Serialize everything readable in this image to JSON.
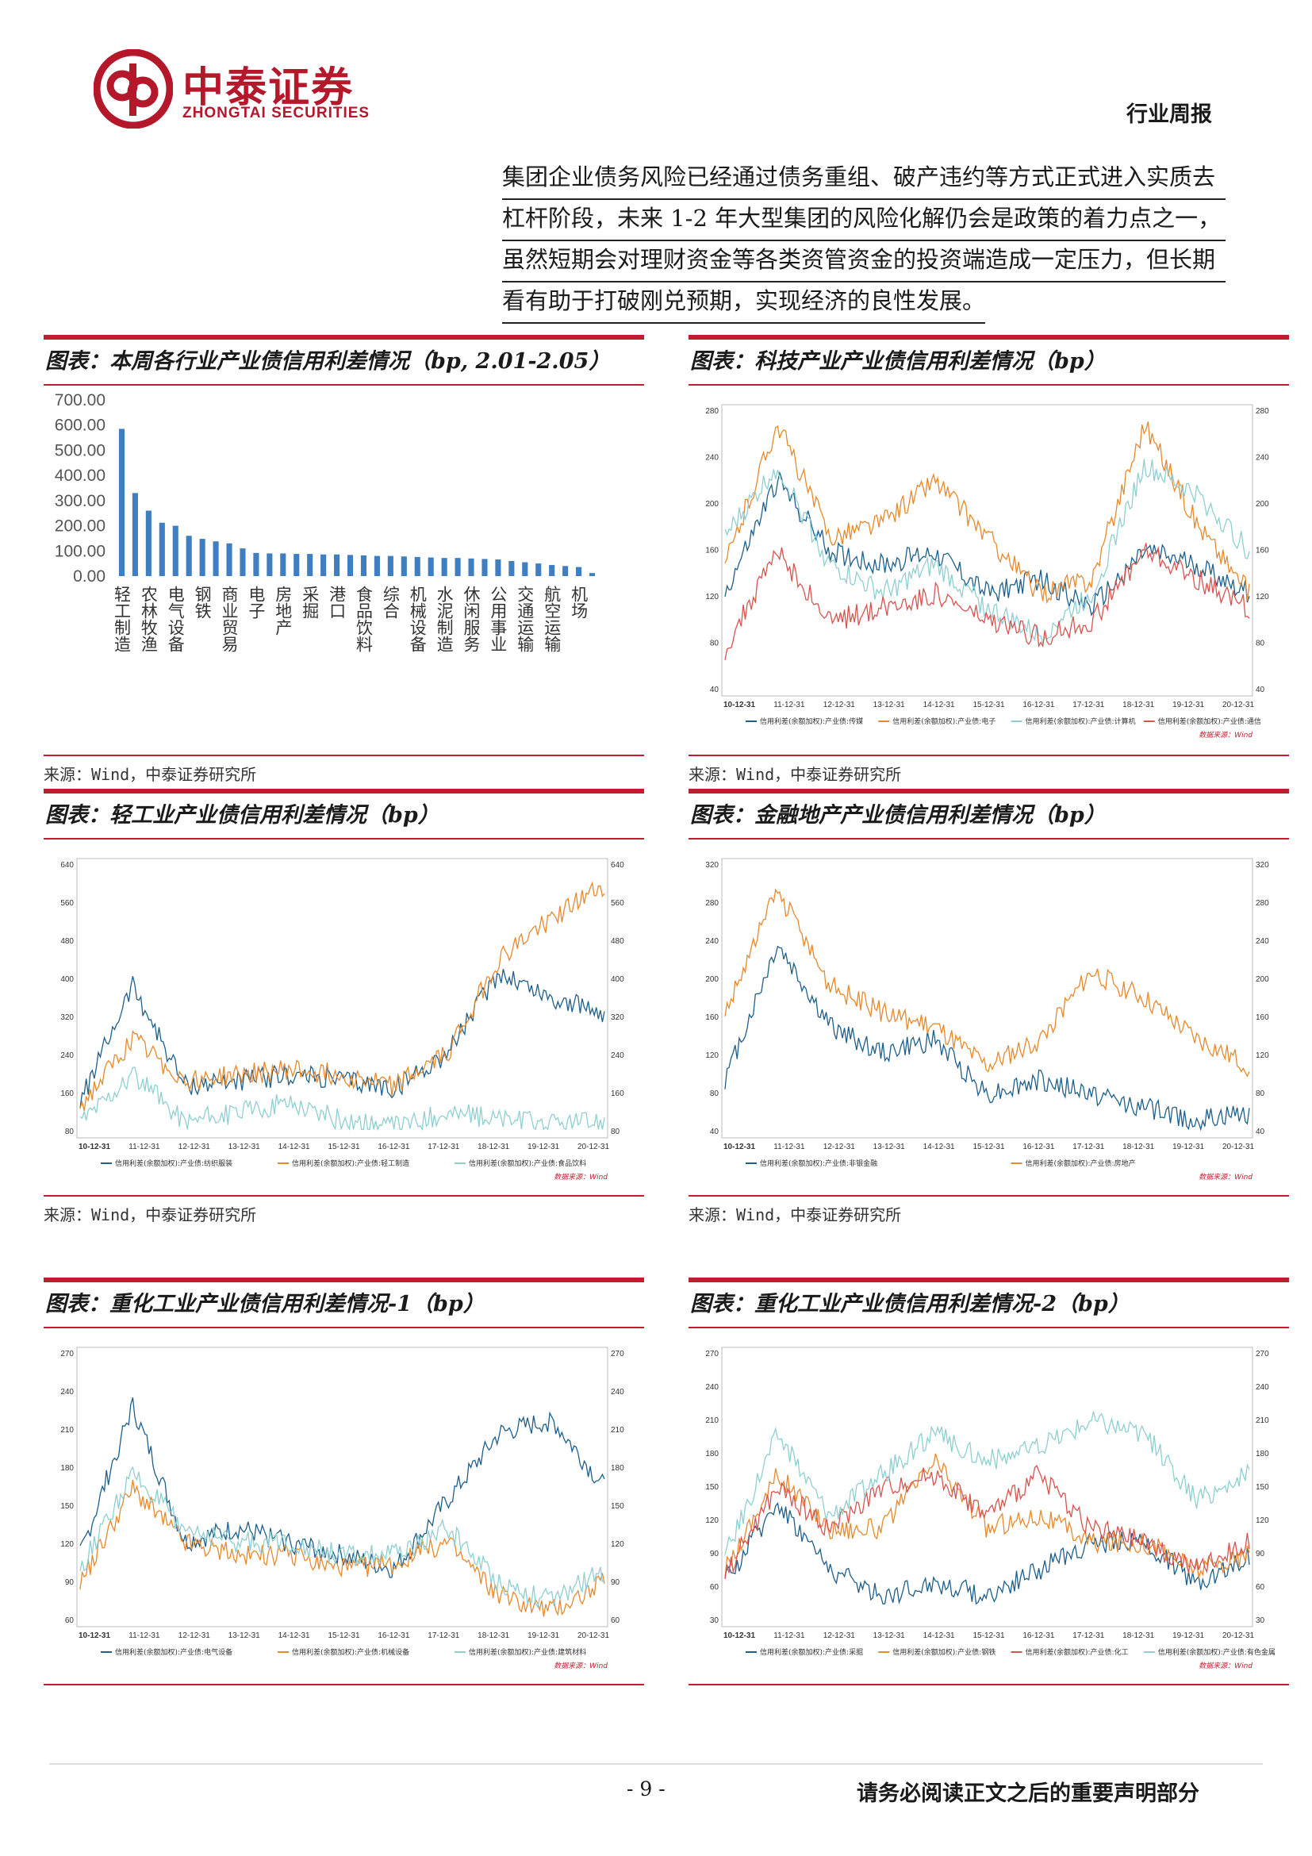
{
  "header": {
    "brand_cn": "中泰证券",
    "brand_en": "ZHONGTAI SECURITIES",
    "report_type": "行业周报",
    "colors": {
      "brand": "#b5172b",
      "accent": "#c21d2f"
    }
  },
  "intro": {
    "lines": [
      "集团企业债务风险已经通过债务重组、破产违约等方式正式进入实质去",
      "杠杆阶段，未来 1-2 年大型集团的风险化解仍会是政策的着力点之一，",
      "虽然短期会对理财资金等各类资管资金的投资端造成一定压力，但长期",
      "看有助于打破刚兑预期，实现经济的良性发展。"
    ]
  },
  "figures": [
    {
      "title": "图表：本周各行业产业债信用利差情况（bp, 2.01-2.05）",
      "source": "来源：Wind，中泰证券研究所"
    },
    {
      "title": "图表：科技产业产业债信用利差情况（bp）",
      "source": "来源：Wind，中泰证券研究所",
      "y_ticks": [
        "280",
        "240",
        "200",
        "160",
        "120",
        "80",
        "40"
      ],
      "x_ticks": [
        "10-12-31",
        "11-12-31",
        "12-12-31",
        "13-12-31",
        "14-12-31",
        "15-12-31",
        "16-12-31",
        "17-12-31",
        "18-12-31",
        "19-12-31",
        "20-12-31"
      ],
      "legend": [
        "信用利差(余额加权):产业债:传媒",
        "信用利差(余额加权):产业债:电子",
        "信用利差(余额加权):产业债:计算机",
        "信用利差(余额加权):产业债:通信"
      ],
      "data_source": "数据来源：Wind",
      "colors": [
        "#1f5f8b",
        "#e8892b",
        "#8fcfd1",
        "#d9534f"
      ]
    },
    {
      "title": "图表：轻工业产业债信用利差情况（bp）",
      "source": "来源：Wind，中泰证券研究所",
      "y_ticks": [
        "640",
        "560",
        "480",
        "400",
        "320",
        "240",
        "160",
        "80"
      ],
      "x_ticks": [
        "10-12-31",
        "11-12-31",
        "12-12-31",
        "13-12-31",
        "14-12-31",
        "15-12-31",
        "16-12-31",
        "17-12-31",
        "18-12-31",
        "19-12-31",
        "20-12-31"
      ],
      "legend": [
        "信用利差(余额加权):产业债:纺织服装",
        "信用利差(余额加权):产业债:轻工制造",
        "信用利差(余额加权):产业债:食品饮料"
      ],
      "data_source": "数据来源：Wind",
      "colors": [
        "#1f5f8b",
        "#e8892b",
        "#8fcfd1"
      ]
    },
    {
      "title": "图表：金融地产产业债信用利差情况（bp）",
      "source": "来源：Wind，中泰证券研究所",
      "y_ticks": [
        "320",
        "280",
        "240",
        "200",
        "160",
        "120",
        "80",
        "40"
      ],
      "x_ticks": [
        "10-12-31",
        "11-12-31",
        "12-12-31",
        "13-12-31",
        "14-12-31",
        "15-12-31",
        "16-12-31",
        "17-12-31",
        "18-12-31",
        "19-12-31",
        "20-12-31"
      ],
      "legend": [
        "信用利差(余额加权):产业债:非银金融",
        "信用利差(余额加权):产业债:房地产"
      ],
      "data_source": "数据来源：Wind",
      "colors": [
        "#1f5f8b",
        "#e8892b"
      ]
    },
    {
      "title": "图表：重化工业产业债信用利差情况-1（bp）",
      "source": "",
      "y_ticks": [
        "270",
        "240",
        "210",
        "180",
        "150",
        "120",
        "90",
        "60"
      ],
      "x_ticks": [
        "10-12-31",
        "11-12-31",
        "12-12-31",
        "13-12-31",
        "14-12-31",
        "15-12-31",
        "16-12-31",
        "17-12-31",
        "18-12-31",
        "19-12-31",
        "20-12-31"
      ],
      "legend": [
        "信用利差(余额加权):产业债:电气设备",
        "信用利差(余额加权):产业债:机械设备",
        "信用利差(余额加权):产业债:建筑材料"
      ],
      "data_source": "数据来源：Wind",
      "colors": [
        "#1f5f8b",
        "#e8892b",
        "#8fcfd1"
      ]
    },
    {
      "title": "图表：重化工业产业债信用利差情况-2（bp）",
      "source": "",
      "y_ticks": [
        "270",
        "240",
        "210",
        "180",
        "150",
        "120",
        "90",
        "60",
        "30"
      ],
      "x_ticks": [
        "10-12-31",
        "11-12-31",
        "12-12-31",
        "13-12-31",
        "14-12-31",
        "15-12-31",
        "16-12-31",
        "17-12-31",
        "18-12-31",
        "19-12-31",
        "20-12-31"
      ],
      "legend": [
        "信用利差(余额加权):产业债:采掘",
        "信用利差(余额加权):产业债:钢铁",
        "信用利差(余额加权):产业债:化工",
        "信用利差(余额加权):产业债:有色金属"
      ],
      "data_source": "数据来源：Wind",
      "colors": [
        "#1f5f8b",
        "#e8892b",
        "#d9534f",
        "#8fcfd1"
      ]
    }
  ],
  "chart_data": {
    "type": "bar",
    "title": "图表：本周各行业产业债信用利差情况（bp, 2.01-2.05）",
    "ylim": [
      0,
      700
    ],
    "y_ticks": [
      "700.00",
      "600.00",
      "500.00",
      "400.00",
      "300.00",
      "200.00",
      "100.00",
      "0.00"
    ],
    "tick_labels": [
      "轻工制造",
      "农林牧渔",
      "电气设备",
      "钢铁",
      "商业贸易",
      "电子",
      "房地产",
      "采掘",
      "港口",
      "食品饮料",
      "综合",
      "机械设备",
      "水泥制造",
      "休闲服务",
      "公用事业",
      "交通运输",
      "航空运输",
      "机场"
    ],
    "values": [
      585,
      330,
      260,
      212,
      200,
      160,
      148,
      138,
      130,
      110,
      92,
      90,
      90,
      88,
      88,
      86,
      86,
      84,
      82,
      80,
      80,
      78,
      76,
      74,
      72,
      72,
      70,
      68,
      66,
      60,
      55,
      50,
      44,
      40,
      36,
      12
    ],
    "color": "#3f7fc1"
  },
  "footer": {
    "page_number": "- 9 -",
    "disclaimer": "请务必阅读正文之后的重要声明部分"
  }
}
